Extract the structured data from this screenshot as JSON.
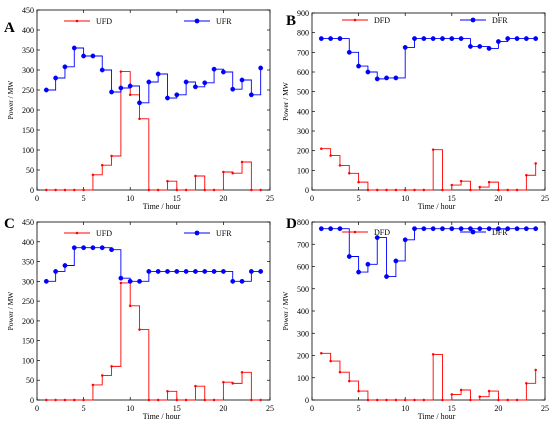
{
  "chart_data": [
    {
      "panel_letter": "A",
      "type": "line",
      "step": true,
      "xlabel": "Time / hour",
      "ylabel": "Power / MW",
      "xlim": [
        0,
        25
      ],
      "ylim": [
        0,
        450
      ],
      "xticks": [
        0,
        5,
        10,
        15,
        20,
        25
      ],
      "yticks": [
        0,
        50,
        100,
        150,
        200,
        250,
        300,
        350,
        400,
        450
      ],
      "grid": false,
      "legend_position": "top",
      "series": [
        {
          "name": "UFD",
          "color": "#ff0000",
          "marker": "dot",
          "x": [
            1,
            2,
            3,
            4,
            5,
            6,
            7,
            8,
            9,
            10,
            11,
            12,
            13,
            14,
            15,
            16,
            17,
            18,
            19,
            20,
            21,
            22,
            23,
            24
          ],
          "y": [
            0,
            0,
            0,
            0,
            0,
            38,
            62,
            85,
            296,
            238,
            178,
            0,
            0,
            22,
            0,
            0,
            35,
            0,
            0,
            45,
            42,
            70,
            0,
            0
          ]
        },
        {
          "name": "UFR",
          "color": "#0000ff",
          "marker": "circle",
          "x": [
            1,
            2,
            3,
            4,
            5,
            6,
            7,
            8,
            9,
            10,
            11,
            12,
            13,
            14,
            15,
            16,
            17,
            18,
            19,
            20,
            21,
            22,
            23,
            24
          ],
          "y": [
            250,
            280,
            308,
            355,
            335,
            335,
            300,
            245,
            255,
            260,
            218,
            270,
            290,
            230,
            238,
            270,
            258,
            268,
            302,
            295,
            252,
            275,
            238,
            305
          ]
        }
      ]
    },
    {
      "panel_letter": "B",
      "type": "line",
      "step": true,
      "xlabel": "Time / hour",
      "ylabel": "Power / MW",
      "xlim": [
        0,
        25
      ],
      "ylim": [
        0,
        900
      ],
      "xticks": [
        0,
        5,
        10,
        15,
        20,
        25
      ],
      "yticks": [
        0,
        100,
        200,
        300,
        400,
        500,
        600,
        700,
        800,
        900
      ],
      "grid": false,
      "legend_position": "top",
      "series": [
        {
          "name": "DFD",
          "color": "#ff0000",
          "marker": "dot",
          "x": [
            1,
            2,
            3,
            4,
            5,
            6,
            7,
            8,
            9,
            10,
            11,
            12,
            13,
            14,
            15,
            16,
            17,
            18,
            19,
            20,
            21,
            22,
            23,
            24
          ],
          "y": [
            210,
            175,
            125,
            85,
            40,
            0,
            0,
            0,
            0,
            0,
            0,
            0,
            205,
            0,
            25,
            45,
            0,
            15,
            40,
            0,
            0,
            0,
            75,
            135
          ]
        },
        {
          "name": "DFR",
          "color": "#0000ff",
          "marker": "circle",
          "x": [
            1,
            2,
            3,
            4,
            5,
            6,
            7,
            8,
            9,
            10,
            11,
            12,
            13,
            14,
            15,
            16,
            17,
            18,
            19,
            20,
            21,
            22,
            23,
            24
          ],
          "y": [
            770,
            770,
            770,
            700,
            630,
            600,
            565,
            570,
            570,
            725,
            770,
            770,
            770,
            770,
            770,
            770,
            730,
            730,
            720,
            755,
            770,
            770,
            770,
            770
          ]
        }
      ]
    },
    {
      "panel_letter": "C",
      "type": "line",
      "step": true,
      "xlabel": "Time / hour",
      "ylabel": "Power / MW",
      "xlim": [
        0,
        25
      ],
      "ylim": [
        0,
        450
      ],
      "xticks": [
        0,
        5,
        10,
        15,
        20,
        25
      ],
      "yticks": [
        0,
        50,
        100,
        150,
        200,
        250,
        300,
        350,
        400,
        450
      ],
      "grid": false,
      "legend_position": "top",
      "series": [
        {
          "name": "UFD",
          "color": "#ff0000",
          "marker": "dot",
          "x": [
            1,
            2,
            3,
            4,
            5,
            6,
            7,
            8,
            9,
            10,
            11,
            12,
            13,
            14,
            15,
            16,
            17,
            18,
            19,
            20,
            21,
            22,
            23,
            24
          ],
          "y": [
            0,
            0,
            0,
            0,
            0,
            38,
            62,
            85,
            296,
            238,
            178,
            0,
            0,
            22,
            0,
            0,
            35,
            0,
            0,
            45,
            42,
            70,
            0,
            0
          ]
        },
        {
          "name": "UFR",
          "color": "#0000ff",
          "marker": "circle",
          "x": [
            1,
            2,
            3,
            4,
            5,
            6,
            7,
            8,
            9,
            10,
            11,
            12,
            13,
            14,
            15,
            16,
            17,
            18,
            19,
            20,
            21,
            22,
            23,
            24
          ],
          "y": [
            300,
            325,
            340,
            385,
            385,
            385,
            385,
            380,
            308,
            300,
            300,
            325,
            325,
            325,
            325,
            325,
            325,
            325,
            325,
            325,
            300,
            300,
            325,
            325
          ]
        }
      ]
    },
    {
      "panel_letter": "D",
      "type": "line",
      "step": true,
      "xlabel": "Time / hour",
      "ylabel": "Power / MW",
      "xlim": [
        0,
        25
      ],
      "ylim": [
        0,
        800
      ],
      "xticks": [
        0,
        5,
        10,
        15,
        20,
        25
      ],
      "yticks": [
        0,
        100,
        200,
        300,
        400,
        500,
        600,
        700,
        800
      ],
      "grid": false,
      "legend_position": "top",
      "series": [
        {
          "name": "DFD",
          "color": "#ff0000",
          "marker": "dot",
          "x": [
            1,
            2,
            3,
            4,
            5,
            6,
            7,
            8,
            9,
            10,
            11,
            12,
            13,
            14,
            15,
            16,
            17,
            18,
            19,
            20,
            21,
            22,
            23,
            24
          ],
          "y": [
            210,
            175,
            125,
            85,
            40,
            0,
            0,
            0,
            0,
            0,
            0,
            0,
            205,
            0,
            25,
            45,
            0,
            15,
            40,
            0,
            0,
            0,
            75,
            135
          ]
        },
        {
          "name": "DFR",
          "color": "#0000ff",
          "marker": "circle",
          "x": [
            1,
            2,
            3,
            4,
            5,
            6,
            7,
            8,
            9,
            10,
            11,
            12,
            13,
            14,
            15,
            16,
            17,
            18,
            19,
            20,
            21,
            22,
            23,
            24
          ],
          "y": [
            770,
            770,
            770,
            645,
            575,
            610,
            730,
            555,
            625,
            720,
            770,
            770,
            770,
            770,
            770,
            770,
            770,
            770,
            770,
            770,
            770,
            770,
            770,
            770
          ]
        }
      ]
    }
  ]
}
